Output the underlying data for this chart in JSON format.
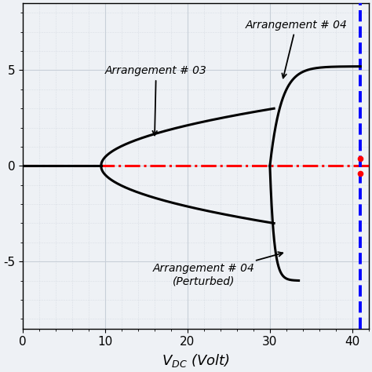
{
  "xmin": 0,
  "xmax": 42,
  "ymin": -0.85,
  "ymax": 0.85,
  "xticks": [
    0,
    10,
    20,
    30,
    40
  ],
  "xlabel": "$V_{DC}$ (Volt)",
  "grid_color": "#c8cfd8",
  "bg_color": "#eef1f5",
  "blue_vline_x": 41.0,
  "red_hline_y": 0.0,
  "annotation_arr03_text": "Arrangement # 03",
  "annotation_arr04_text": "Arrangement # 04",
  "annotation_arr04p_text": "Arrangement # 04\n(Perturbed)"
}
